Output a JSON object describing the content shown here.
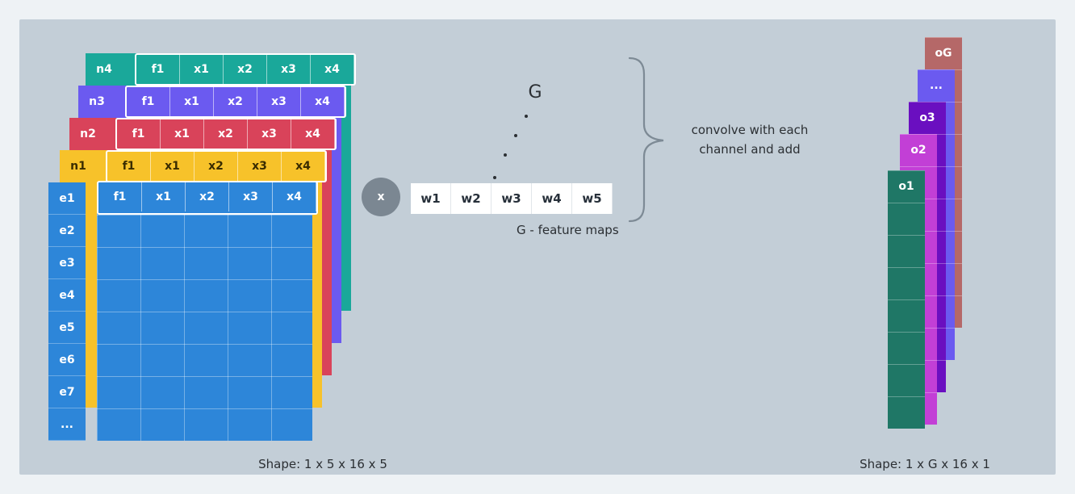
{
  "layers": [
    {
      "name": "n4",
      "color": "#1aa89a"
    },
    {
      "name": "n3",
      "color": "#6b5af0"
    },
    {
      "name": "n2",
      "color": "#d9435a"
    },
    {
      "name": "n1",
      "color": "#f7c22a"
    }
  ],
  "header_cells": [
    "f1",
    "x1",
    "x2",
    "x3",
    "x4"
  ],
  "front_layer": {
    "color": "#2d86d9",
    "rows": [
      "e1",
      "e2",
      "e3",
      "e4",
      "e5",
      "e6",
      "e7",
      "..."
    ]
  },
  "multiply_symbol": "x",
  "filter": {
    "cells": [
      "w1",
      "w2",
      "w3",
      "w4",
      "w5"
    ],
    "stack_label": "G",
    "caption": "G  - feature maps"
  },
  "brace_text_line1": "convolve with each",
  "brace_text_line2": "channel and add",
  "input_shape": "Shape: 1 x 5 x 16 x 5",
  "output_shape": "Shape: 1 x G x 16 x 1",
  "outputs": [
    {
      "name": "oG",
      "color": "#b56868"
    },
    {
      "name": "...",
      "color": "#6b5af0"
    },
    {
      "name": "o3",
      "color": "#6a0fc0"
    },
    {
      "name": "o2",
      "color": "#c23fd6"
    },
    {
      "name": "o1",
      "color": "#1f7766"
    }
  ]
}
